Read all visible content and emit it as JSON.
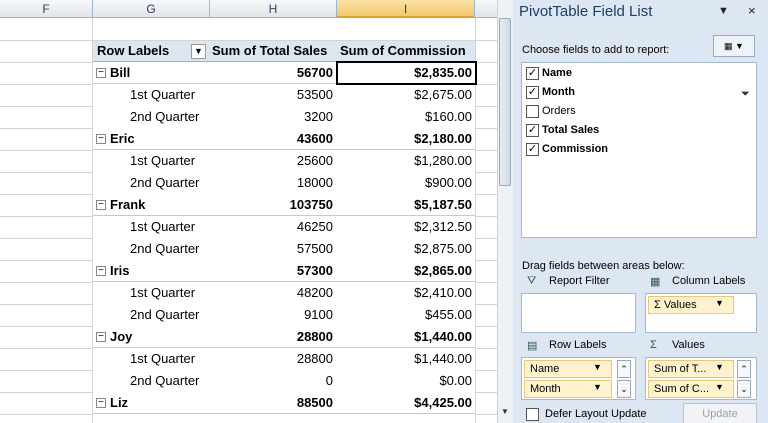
{
  "column_headers": [
    "F",
    "G",
    "H",
    "I"
  ],
  "pivot": {
    "headers": [
      "Row Labels",
      "Sum of Total Sales",
      "Sum of Commission"
    ],
    "groups": [
      {
        "name": "Bill",
        "sales": "56700",
        "commission": "$2,835.00",
        "quarters": [
          {
            "label": "1st Quarter",
            "sales": "53500",
            "commission": "$2,675.00"
          },
          {
            "label": "2nd Quarter",
            "sales": "3200",
            "commission": "$160.00"
          }
        ]
      },
      {
        "name": "Eric",
        "sales": "43600",
        "commission": "$2,180.00",
        "quarters": [
          {
            "label": "1st Quarter",
            "sales": "25600",
            "commission": "$1,280.00"
          },
          {
            "label": "2nd Quarter",
            "sales": "18000",
            "commission": "$900.00"
          }
        ]
      },
      {
        "name": "Frank",
        "sales": "103750",
        "commission": "$5,187.50",
        "quarters": [
          {
            "label": "1st Quarter",
            "sales": "46250",
            "commission": "$2,312.50"
          },
          {
            "label": "2nd Quarter",
            "sales": "57500",
            "commission": "$2,875.00"
          }
        ]
      },
      {
        "name": "Iris",
        "sales": "57300",
        "commission": "$2,865.00",
        "quarters": [
          {
            "label": "1st Quarter",
            "sales": "48200",
            "commission": "$2,410.00"
          },
          {
            "label": "2nd Quarter",
            "sales": "9100",
            "commission": "$455.00"
          }
        ]
      },
      {
        "name": "Joy",
        "sales": "28800",
        "commission": "$1,440.00",
        "quarters": [
          {
            "label": "1st Quarter",
            "sales": "28800",
            "commission": "$1,440.00"
          },
          {
            "label": "2nd Quarter",
            "sales": "0",
            "commission": "$0.00"
          }
        ]
      },
      {
        "name": "Liz",
        "sales": "88500",
        "commission": "$4,425.00",
        "quarters": []
      }
    ]
  },
  "field_list": {
    "title": "PivotTable Field List",
    "choose_label": "Choose fields to add to report:",
    "fields": [
      {
        "name": "Name",
        "checked": true
      },
      {
        "name": "Month",
        "checked": true
      },
      {
        "name": "Orders",
        "checked": false
      },
      {
        "name": "Total Sales",
        "checked": true
      },
      {
        "name": "Commission",
        "checked": true
      }
    ],
    "drag_label": "Drag fields between areas below:",
    "areas": {
      "report_filter": {
        "title": "Report Filter",
        "items": []
      },
      "column_labels": {
        "title": "Column Labels",
        "items": [
          "Σ Values"
        ]
      },
      "row_labels": {
        "title": "Row Labels",
        "items": [
          "Name",
          "Month"
        ]
      },
      "values": {
        "title": "Values",
        "items": [
          "Sum of T...",
          "Sum of C..."
        ]
      }
    },
    "defer_label": "Defer Layout Update",
    "update_button": "Update"
  }
}
